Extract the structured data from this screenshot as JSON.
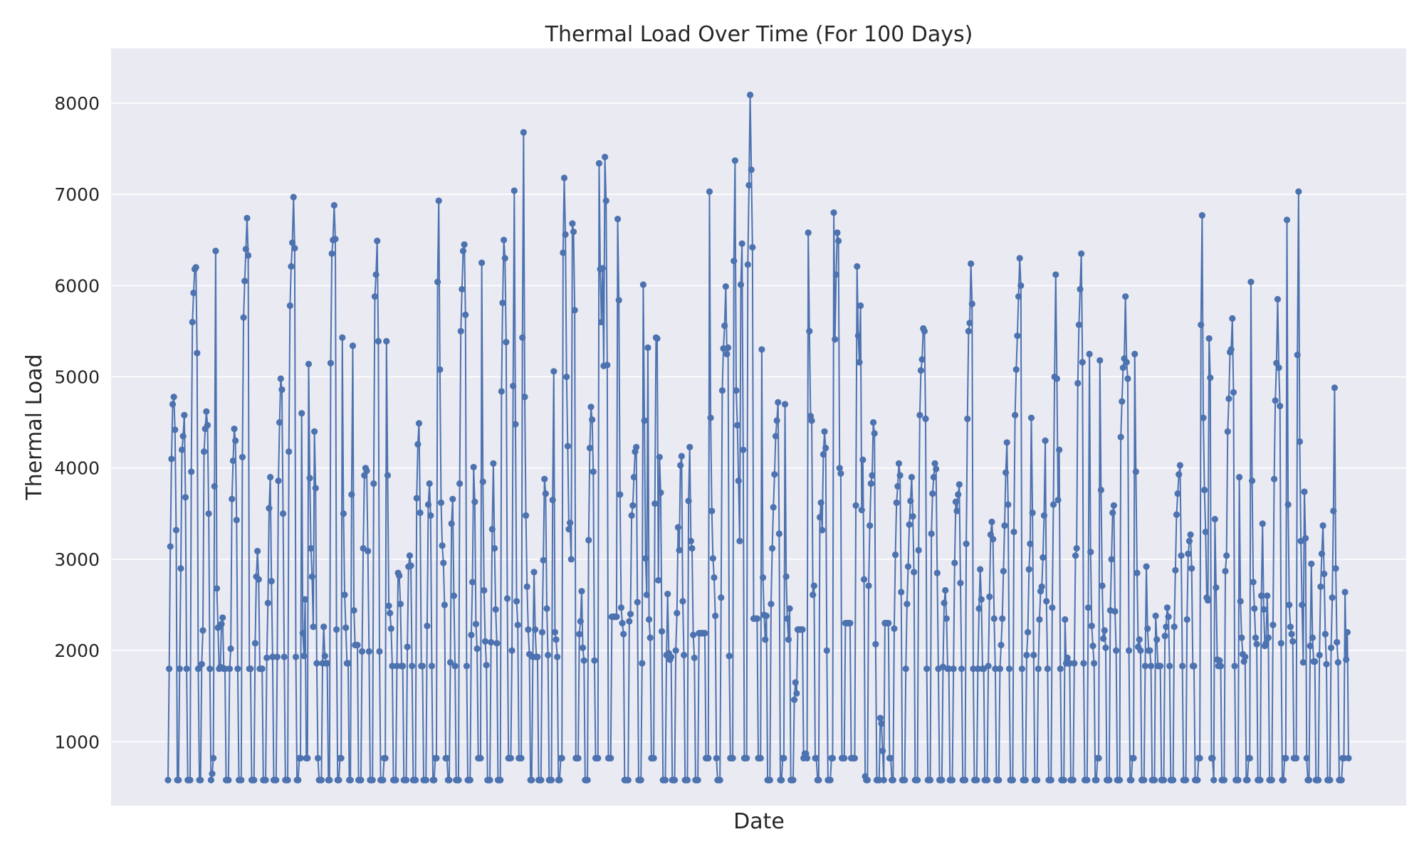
{
  "chart_data": {
    "type": "line",
    "title": "Thermal Load Over Time (For 100 Days)",
    "xlabel": "Date",
    "ylabel": "Thermal Load",
    "x_tick_labels_shown": false,
    "ylim": [
      300,
      8600
    ],
    "yticks": [
      1000,
      2000,
      3000,
      4000,
      5000,
      6000,
      7000,
      8000
    ],
    "ytick_labels": [
      "1000",
      "2000",
      "3000",
      "4000",
      "5000",
      "6000",
      "7000",
      "8000"
    ],
    "grid": true,
    "markers": true,
    "series_color": "#4c72b0",
    "background_color": "#eaeaf2",
    "series": [
      {
        "values": [
          580,
          1800,
          3140,
          4100,
          4700,
          4780,
          4420,
          3320,
          580,
          580,
          1800,
          2900,
          4200,
          4350,
          4580,
          3680,
          1800,
          580,
          580,
          580,
          3960,
          5600,
          5920,
          6180,
          6200,
          5260,
          1800,
          580,
          580,
          1850,
          2220,
          4180,
          4430,
          4620,
          4470,
          3500,
          1800,
          580,
          650,
          820,
          3800,
          6380,
          2680,
          2250,
          1800,
          1820,
          2290,
          2360,
          1800,
          1800,
          580,
          580,
          580,
          1800,
          2020,
          3660,
          4080,
          4430,
          4300,
          3430,
          1800,
          580,
          580,
          580,
          4120,
          5650,
          6050,
          6400,
          6740,
          6330,
          1800,
          1800,
          580,
          580,
          580,
          2080,
          2810,
          3090,
          2780,
          1800,
          1800,
          1800,
          580,
          580,
          580,
          1920,
          2520,
          3560,
          3900,
          2760,
          1930,
          580,
          580,
          580,
          1930,
          3860,
          4500,
          4980,
          4860,
          3500,
          1930,
          580,
          580,
          580,
          4180,
          5780,
          6210,
          6470,
          6970,
          6410,
          1930,
          580,
          580,
          820,
          820,
          4600,
          2190,
          1940,
          2560,
          820,
          820,
          5140,
          3890,
          3120,
          2810,
          2260,
          4400,
          3780,
          1860,
          820,
          580,
          580,
          580,
          1860,
          2260,
          1940,
          1860,
          1860,
          580,
          580,
          5150,
          6350,
          6500,
          6880,
          6510,
          2230,
          580,
          580,
          820,
          820,
          5430,
          3500,
          2610,
          2250,
          1860,
          1860,
          580,
          580,
          3710,
          5340,
          2440,
          2060,
          2060,
          2060,
          580,
          580,
          580,
          1990,
          3120,
          3920,
          4000,
          3970,
          3090,
          1990,
          580,
          580,
          580,
          3830,
          5880,
          6120,
          6490,
          5390,
          1990,
          580,
          580,
          580,
          820,
          820,
          5390,
          3920,
          2490,
          2410,
          2240,
          1830,
          580,
          580,
          580,
          1830,
          2850,
          2820,
          2510,
          1830,
          1830,
          580,
          580,
          580,
          2040,
          2920,
          3040,
          2930,
          1830,
          580,
          580,
          580,
          3670,
          4260,
          4490,
          3510,
          1830,
          1830,
          580,
          580,
          580,
          2270,
          3600,
          3830,
          3480,
          1830,
          580,
          580,
          820,
          820,
          6040,
          6930,
          5080,
          3620,
          3150,
          2960,
          2500,
          820,
          820,
          580,
          580,
          1870,
          3390,
          3660,
          2600,
          1830,
          580,
          580,
          580,
          3830,
          5500,
          5960,
          6380,
          6450,
          5680,
          1830,
          580,
          580,
          580,
          2170,
          2750,
          4010,
          3630,
          2290,
          2020,
          820,
          820,
          820,
          6250,
          3850,
          2660,
          2100,
          1840,
          580,
          580,
          580,
          2090,
          3330,
          4050,
          3120,
          2450,
          2080,
          580,
          580,
          580,
          4840,
          5810,
          6500,
          6300,
          5380,
          2570,
          820,
          820,
          820,
          2000,
          4900,
          7040,
          4480,
          2540,
          2280,
          820,
          820,
          820,
          5430,
          7680,
          4780,
          3480,
          2700,
          2230,
          1960,
          580,
          580,
          1930,
          2860,
          2230,
          1930,
          1930,
          580,
          580,
          580,
          2200,
          2990,
          3880,
          3720,
          2460,
          1950,
          580,
          580,
          580,
          3650,
          5060,
          2200,
          2120,
          1930,
          580,
          580,
          820,
          820,
          6360,
          7180,
          6560,
          5000,
          4240,
          3330,
          3400,
          3000,
          6680,
          6590,
          5730,
          820,
          820,
          820,
          2180,
          2320,
          2650,
          2030,
          1890,
          580,
          580,
          580,
          3210,
          4220,
          4670,
          4530,
          3960,
          1890,
          820,
          820,
          820,
          7340,
          6180,
          5600,
          6190,
          5120,
          7410,
          6930,
          5130,
          820,
          820,
          820,
          2370,
          2370,
          2370,
          2370,
          2370,
          6730,
          5840,
          3710,
          2470,
          2300,
          2180,
          580,
          580,
          580,
          580,
          2320,
          2400,
          3480,
          3590,
          3900,
          4180,
          4230,
          2530,
          580,
          580,
          580,
          1860,
          6010,
          4520,
          3010,
          2610,
          5320,
          2340,
          2140,
          820,
          820,
          820,
          3610,
          5430,
          5420,
          2770,
          4120,
          3730,
          2210,
          580,
          580,
          580,
          1950,
          2620,
          1970,
          1900,
          1930,
          580,
          580,
          580,
          2000,
          2410,
          3350,
          3100,
          4030,
          4130,
          2540,
          1950,
          580,
          580,
          580,
          3640,
          4230,
          3200,
          3120,
          2170,
          1920,
          580,
          580,
          580,
          2190,
          2190,
          2190,
          2190,
          2190,
          2190,
          820,
          820,
          820,
          7030,
          4550,
          3530,
          3010,
          2800,
          2380,
          820,
          580,
          580,
          580,
          2580,
          4850,
          5310,
          5560,
          5990,
          5250,
          5320,
          1940,
          820,
          820,
          820,
          6270,
          7370,
          4850,
          4470,
          3860,
          3200,
          6010,
          6460,
          4200,
          820,
          820,
          820,
          6230,
          7100,
          8090,
          7270,
          6420,
          2350,
          2350,
          2350,
          2350,
          820,
          820,
          820,
          5300,
          2800,
          2390,
          2120,
          2380,
          580,
          580,
          580,
          2510,
          3120,
          3570,
          3930,
          4350,
          4520,
          4720,
          3280,
          580,
          580,
          820,
          820,
          4700,
          2810,
          2350,
          2120,
          2460,
          580,
          580,
          580,
          1460,
          1650,
          1530,
          2230,
          2230,
          2230,
          2230,
          2230,
          820,
          870,
          870,
          820,
          6580,
          5500,
          4570,
          4520,
          2610,
          2710,
          820,
          820,
          580,
          580,
          3460,
          3620,
          3320,
          4150,
          4400,
          4220,
          2000,
          580,
          580,
          580,
          820,
          820,
          6800,
          5410,
          6120,
          6580,
          6490,
          4000,
          3940,
          820,
          820,
          820,
          2300,
          2300,
          2300,
          2300,
          2300,
          820,
          820,
          820,
          820,
          3590,
          6210,
          5450,
          5160,
          5780,
          3540,
          4090,
          2780,
          620,
          580,
          580,
          2710,
          3370,
          3830,
          3920,
          4500,
          4380,
          2070,
          580,
          580,
          580,
          1260,
          1200,
          900,
          580,
          2300,
          2300,
          2300,
          2300,
          820,
          820,
          580,
          580,
          2240,
          3050,
          3620,
          3800,
          4050,
          3920,
          2640,
          580,
          580,
          580,
          1800,
          2510,
          2920,
          3380,
          3640,
          3900,
          3470,
          2860,
          580,
          580,
          580,
          3100,
          4580,
          5070,
          5190,
          5530,
          5500,
          4540,
          1800,
          580,
          580,
          580,
          3280,
          3720,
          3900,
          4050,
          3990,
          2850,
          1800,
          580,
          580,
          580,
          1820,
          2520,
          2660,
          2350,
          1800,
          1800,
          580,
          580,
          580,
          1800,
          2960,
          3630,
          3530,
          3710,
          3820,
          2740,
          1800,
          580,
          580,
          580,
          3170,
          4540,
          5500,
          5590,
          6240,
          5800,
          1800,
          580,
          580,
          580,
          1800,
          2460,
          2890,
          2560,
          1800,
          1800,
          580,
          580,
          580,
          1830,
          2590,
          3270,
          3410,
          3220,
          2350,
          1800,
          580,
          580,
          580,
          1800,
          2060,
          2350,
          2870,
          3370,
          3950,
          4280,
          3600,
          1800,
          580,
          580,
          580,
          3300,
          4580,
          5080,
          5450,
          5880,
          6300,
          6000,
          1800,
          580,
          580,
          580,
          1950,
          2200,
          2890,
          3170,
          4550,
          3510,
          1950,
          580,
          580,
          580,
          1800,
          2340,
          2650,
          2700,
          3020,
          3480,
          4300,
          2540,
          1800,
          580,
          580,
          580,
          2470,
          3600,
          5000,
          6120,
          4980,
          3650,
          4200,
          1800,
          580,
          580,
          580,
          2340,
          1860,
          1920,
          1860,
          1860,
          580,
          580,
          580,
          1860,
          3040,
          3120,
          4930,
          5570,
          5960,
          6350,
          5160,
          1860,
          580,
          580,
          580,
          2470,
          5250,
          3080,
          2270,
          2050,
          1860,
          580,
          580,
          820,
          820,
          5180,
          3760,
          2710,
          2130,
          2220,
          2030,
          580,
          580,
          580,
          2440,
          3000,
          3510,
          3590,
          2430,
          2000,
          580,
          580,
          580,
          4340,
          4730,
          5100,
          5200,
          5880,
          5160,
          4980,
          2000,
          580,
          580,
          820,
          820,
          5250,
          3960,
          2850,
          2040,
          2120,
          2000,
          580,
          580,
          580,
          1830,
          2920,
          2240,
          2000,
          2000,
          1830,
          580,
          580,
          580,
          2380,
          2120,
          1830,
          1830,
          1830,
          580,
          580,
          580,
          2160,
          2260,
          2470,
          2370,
          1830,
          580,
          580,
          580,
          2260,
          2880,
          3490,
          3720,
          3930,
          4030,
          3040,
          1830,
          580,
          580,
          580,
          2340,
          3060,
          3200,
          3270,
          2900,
          1830,
          1830,
          580,
          580,
          580,
          820,
          820,
          5570,
          6770,
          4550,
          3760,
          3300,
          2580,
          2550,
          5420,
          4990,
          820,
          820,
          580,
          3440,
          2690,
          1900,
          1830,
          1890,
          1830,
          580,
          580,
          580,
          2870,
          3040,
          4400,
          4760,
          5270,
          5300,
          5640,
          4830,
          1830,
          580,
          580,
          580,
          3900,
          2540,
          2140,
          1960,
          1880,
          1930,
          580,
          580,
          820,
          820,
          6040,
          3860,
          2750,
          2460,
          2140,
          2070,
          580,
          580,
          580,
          2600,
          3390,
          2450,
          2050,
          2080,
          2600,
          2140,
          580,
          580,
          580,
          2280,
          3880,
          4740,
          5150,
          5850,
          5100,
          4680,
          2080,
          580,
          580,
          820,
          820,
          6720,
          3600,
          2500,
          2260,
          2180,
          2100,
          820,
          820,
          820,
          5240,
          7030,
          4290,
          3200,
          2500,
          1870,
          3740,
          3230,
          820,
          580,
          580,
          2050,
          2950,
          2140,
          1880,
          1880,
          580,
          580,
          580,
          1950,
          2700,
          3060,
          3370,
          2840,
          2180,
          1850,
          580,
          580,
          580,
          2030,
          2580,
          3530,
          4880,
          2900,
          2090,
          1870,
          580,
          580,
          580,
          820,
          820,
          2640,
          1900,
          2200,
          820
        ]
      }
    ]
  }
}
